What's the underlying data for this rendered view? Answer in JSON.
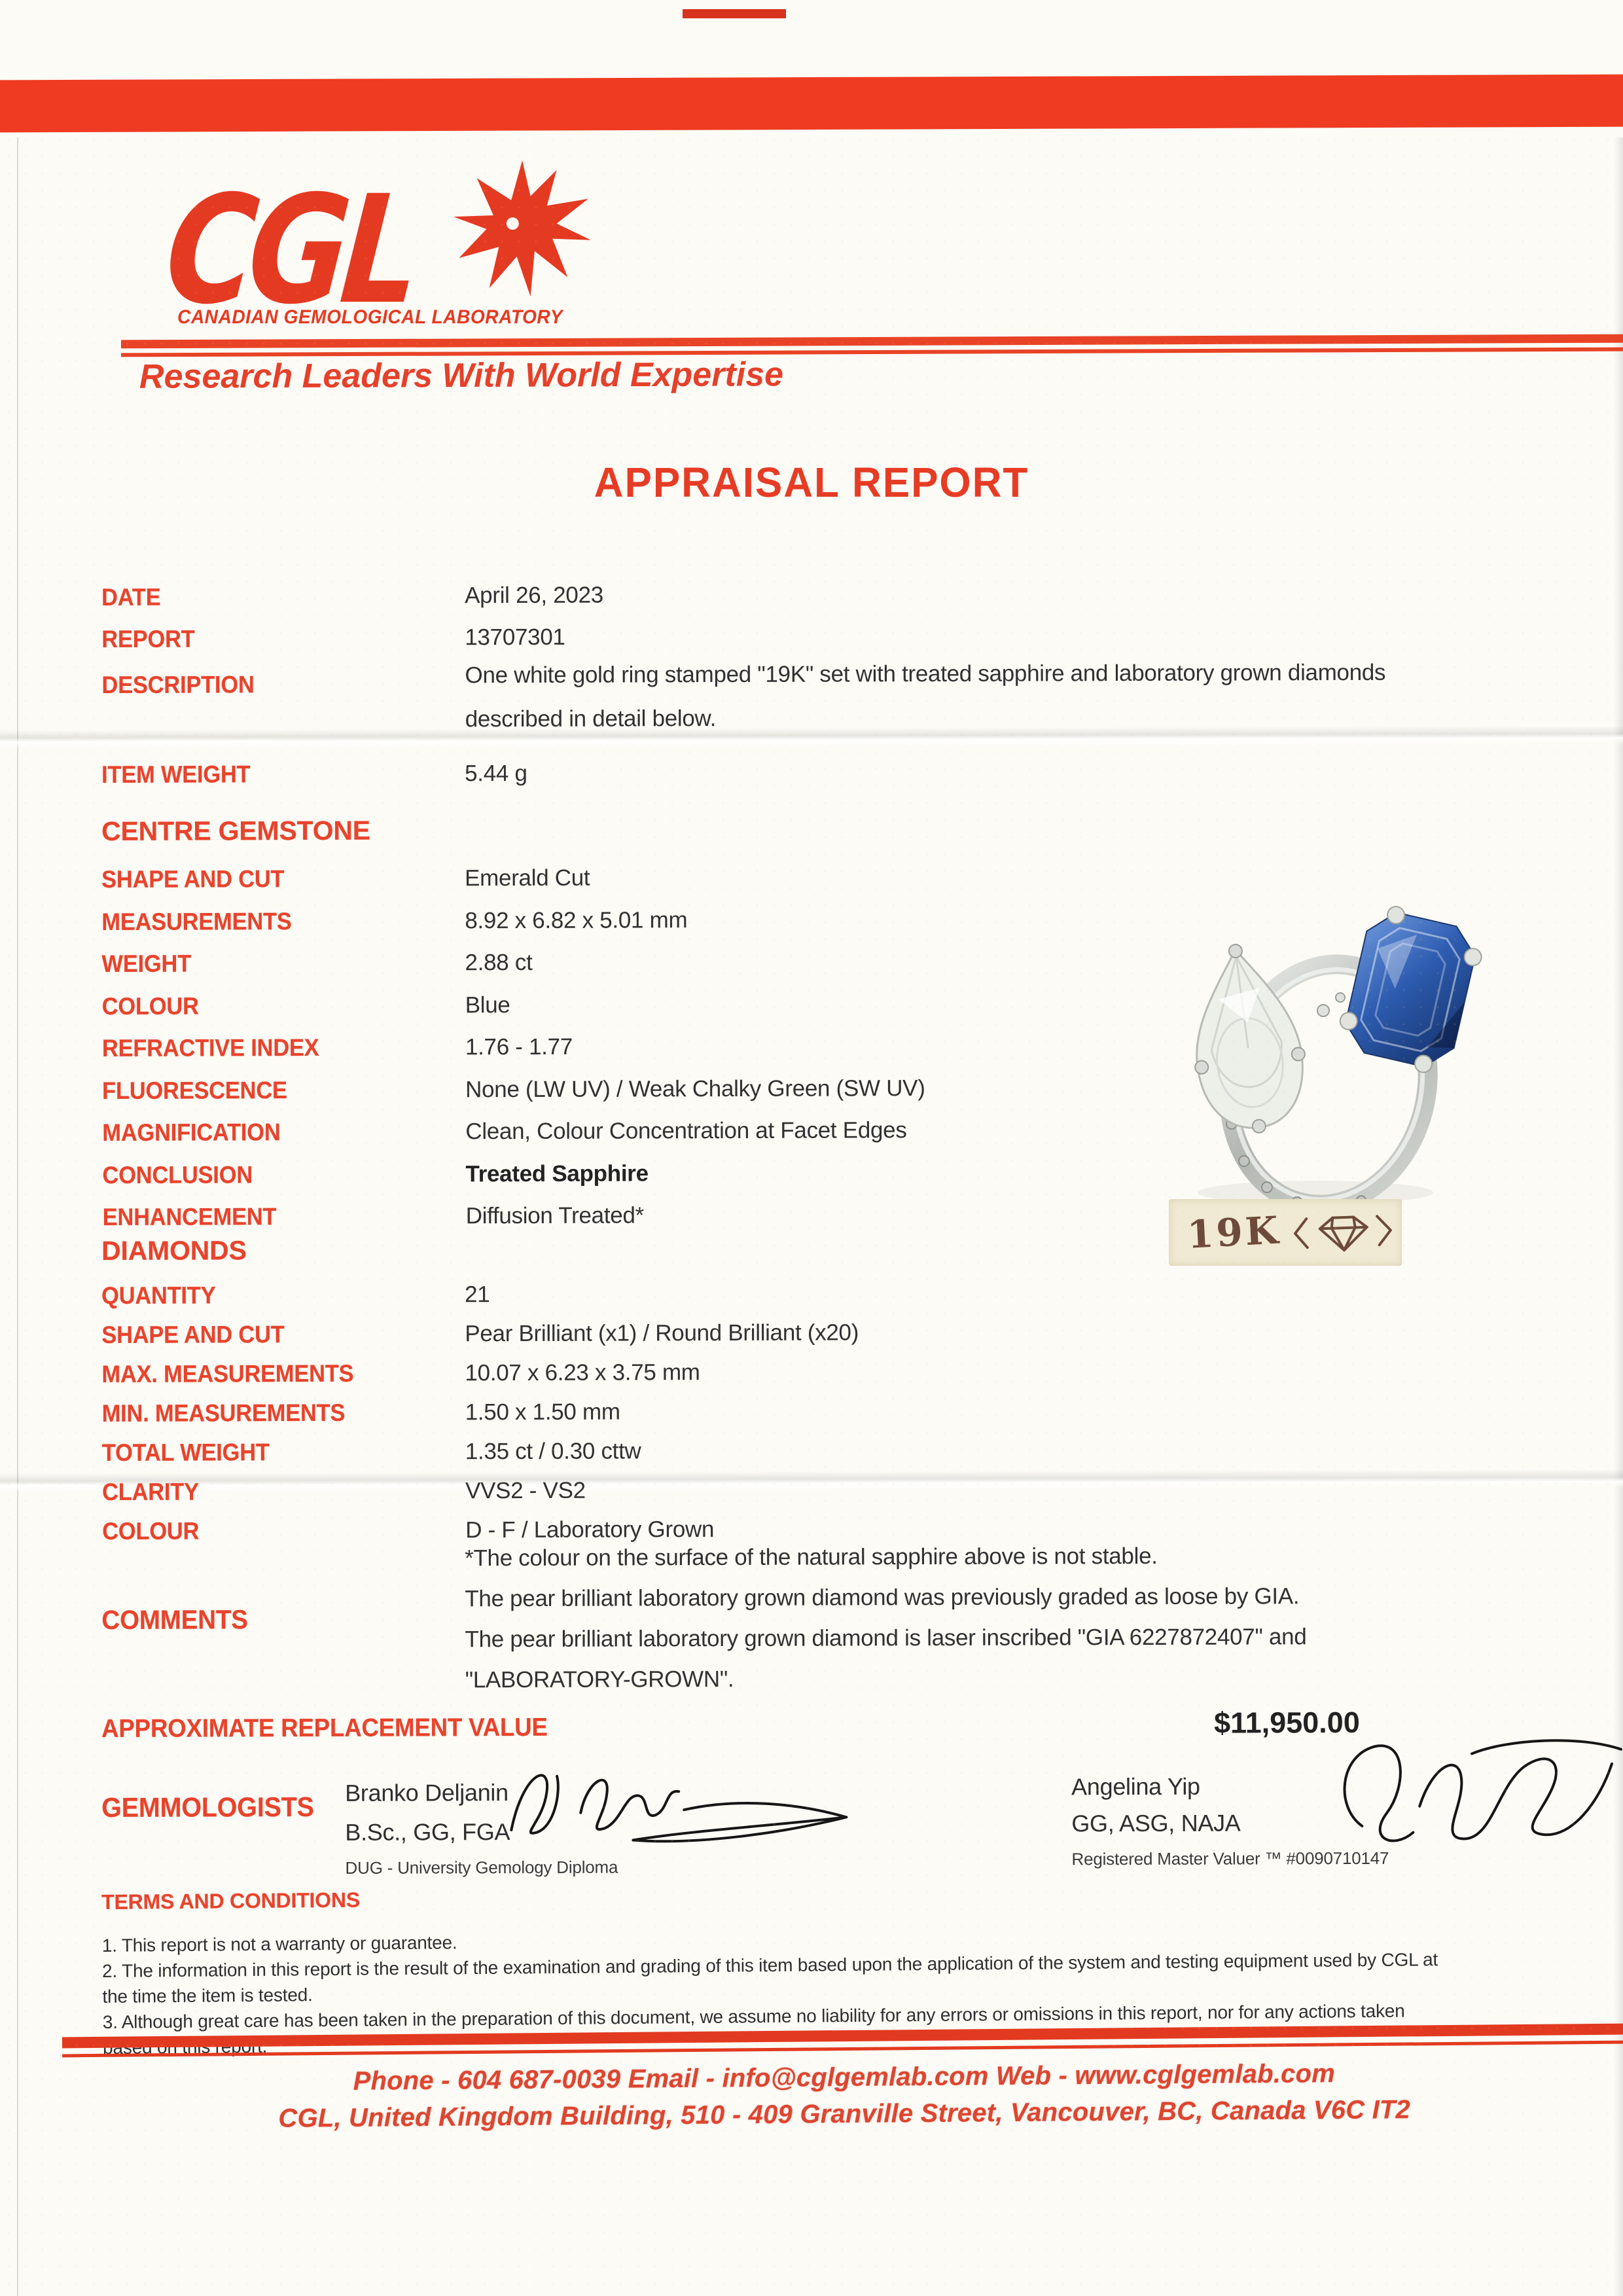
{
  "page": {
    "accent_red": "#e8432c",
    "band_red": "#ee3b21",
    "paper": "#fcfbf6"
  },
  "header": {
    "logo_text": "CGL",
    "logo_subtitle": "CANADIAN GEMOLOGICAL LABORATORY",
    "tagline": "Research Leaders With World Expertise",
    "starburst_icon": "starburst-icon"
  },
  "title": "APPRAISAL REPORT",
  "meta": {
    "date_label": "DATE",
    "date_value": "April 26, 2023",
    "report_label": "REPORT",
    "report_value": "13707301",
    "description_label": "DESCRIPTION",
    "description_value": "One white gold ring stamped \"19K\" set with treated sapphire and laboratory grown diamonds described in detail below."
  },
  "item_weight": {
    "label": "ITEM WEIGHT",
    "value": "5.44 g"
  },
  "centre_gemstone": {
    "header": "CENTRE GEMSTONE",
    "rows": [
      {
        "label": "SHAPE AND CUT",
        "value": "Emerald Cut"
      },
      {
        "label": "MEASUREMENTS",
        "value": "8.92 x 6.82 x 5.01 mm"
      },
      {
        "label": "WEIGHT",
        "value": "2.88 ct"
      },
      {
        "label": "COLOUR",
        "value": "Blue"
      },
      {
        "label": "REFRACTIVE INDEX",
        "value": "1.76 - 1.77"
      },
      {
        "label": "FLUORESCENCE",
        "value": "None (LW UV) / Weak Chalky Green (SW UV)"
      },
      {
        "label": "MAGNIFICATION",
        "value": "Clean, Colour Concentration at Facet Edges"
      },
      {
        "label": "CONCLUSION",
        "value": "Treated Sapphire",
        "bold": true
      },
      {
        "label": "ENHANCEMENT",
        "value": "Diffusion Treated*"
      }
    ]
  },
  "diamonds": {
    "header": "DIAMONDS",
    "rows": [
      {
        "label": "QUANTITY",
        "value": "21"
      },
      {
        "label": "SHAPE AND CUT",
        "value": "Pear Brilliant (x1) / Round Brilliant (x20)"
      },
      {
        "label": "MAX. MEASUREMENTS",
        "value": "10.07 x 6.23 x 3.75 mm"
      },
      {
        "label": "MIN. MEASUREMENTS",
        "value": "1.50 x 1.50 mm"
      },
      {
        "label": "TOTAL WEIGHT",
        "value": "1.35 ct / 0.30 cttw"
      },
      {
        "label": "CLARITY",
        "value": "VVS2 - VS2"
      },
      {
        "label": "COLOUR",
        "value": "D - F / Laboratory Grown"
      }
    ]
  },
  "comments": {
    "label": "COMMENTS",
    "lines": [
      "*The colour on the surface of the natural sapphire above is not stable.",
      "The pear brilliant laboratory grown diamond was previously graded as loose by GIA.",
      "The pear brilliant laboratory grown diamond is laser inscribed \"GIA 6227872407\" and",
      "\"LABORATORY-GROWN\"."
    ]
  },
  "replacement": {
    "label": "APPROXIMATE REPLACEMENT VALUE",
    "value": "$11,950.00"
  },
  "gemmologists": {
    "label": "GEMMOLOGISTS",
    "people": [
      {
        "name": "Branko Deljanin",
        "credentials": "B.Sc., GG, FGA",
        "note": "DUG - University Gemology Diploma"
      },
      {
        "name": "Angelina Yip",
        "credentials": "GG, ASG, NAJA",
        "note": "Registered Master Valuer ™ #0090710147"
      }
    ]
  },
  "terms": {
    "header": "TERMS AND CONDITIONS",
    "items": [
      "1. This report is not a warranty or guarantee.",
      "2. The information in this report is the result of the examination and grading of this item based upon the application of the system and testing equipment used by CGL at the time the item is tested.",
      "3. Although great care has been taken in the preparation of this document, we assume no liability for any errors or omissions in this report, nor for any actions taken based on this report."
    ]
  },
  "footer": {
    "contact": "Phone - 604 687-0039 Email - info@cglgemlab.com   Web - www.cglgemlab.com",
    "address": "CGL, United Kingdom Building, 510 - 409 Granville Street, Vancouver, BC, Canada V6C IT2"
  },
  "photo": {
    "alt": "white gold ring set with pear brilliant diamond and emerald cut blue sapphire",
    "stamp_text": "19K",
    "sapphire_blue": "#2e5cb0",
    "metal_silver": "#c9ccc8"
  }
}
